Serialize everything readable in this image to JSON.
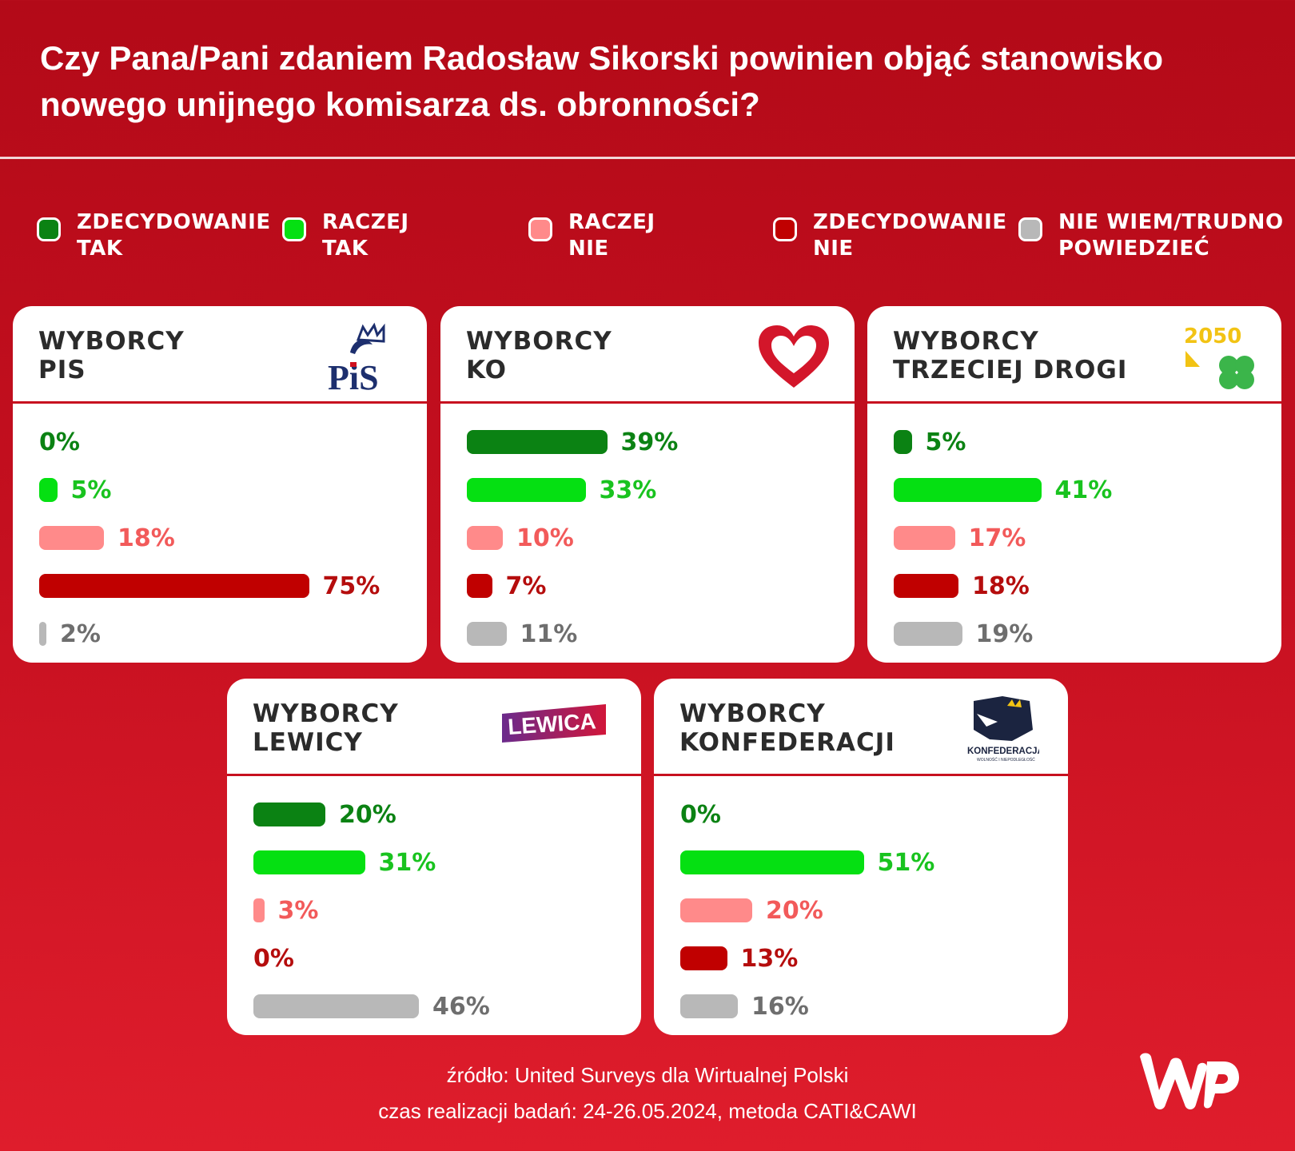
{
  "title": "Czy Pana/Pani zdaniem Radosław Sikorski powinien objąć stanowisko nowego unijnego komisarza ds. obronności?",
  "legend": [
    {
      "line1": "ZDECYDOWANIE",
      "line2": "TAK",
      "color": "#0b8213"
    },
    {
      "line1": "RACZEJ",
      "line2": "TAK",
      "color": "#05e012"
    },
    {
      "line1": "RACZEJ",
      "line2": "NIE",
      "color": "#ff8a8a"
    },
    {
      "line1": "ZDECYDOWANIE",
      "line2": "NIE",
      "color": "#c00000"
    },
    {
      "line1": "NIE WIEM/TRUDNO",
      "line2": "POWIEDZIEĆ",
      "color": "#b8b8b8"
    }
  ],
  "text_colors": [
    "#0b8213",
    "#19c31f",
    "#f25a5a",
    "#b50d0d",
    "#6e6e6e"
  ],
  "chart_data": {
    "type": "bar",
    "orientation": "horizontal",
    "categories": [
      "ZDECYDOWANIE TAK",
      "RACZEJ TAK",
      "RACZEJ NIE",
      "ZDECYDOWANIE NIE",
      "NIE WIEM/TRUDNO POWIEDZIEĆ"
    ],
    "unit": "%",
    "series": [
      {
        "name": "WYBORCY PIS",
        "title_lines": [
          "WYBORCY",
          "PIS"
        ],
        "logo": "pis-logo",
        "values": [
          0,
          5,
          18,
          75,
          2
        ],
        "labels": [
          "0%",
          "5%",
          "18%",
          "75%",
          "2%"
        ]
      },
      {
        "name": "WYBORCY KO",
        "title_lines": [
          "WYBORCY",
          "KO"
        ],
        "logo": "heart-logo",
        "values": [
          39,
          33,
          10,
          7,
          11
        ],
        "labels": [
          "39%",
          "33%",
          "10%",
          "7%",
          "11%"
        ]
      },
      {
        "name": "WYBORCY TRZECIEJ DROGI",
        "title_lines": [
          "WYBORCY",
          "TRZECIEJ DROGI"
        ],
        "logo": "trzecia-droga-logo",
        "values": [
          5,
          41,
          17,
          18,
          19
        ],
        "labels": [
          "5%",
          "41%",
          "17%",
          "18%",
          "19%"
        ]
      },
      {
        "name": "WYBORCY LEWICY",
        "title_lines": [
          "WYBORCY",
          "LEWICY"
        ],
        "logo": "lewica-logo",
        "values": [
          20,
          31,
          3,
          0,
          46
        ],
        "labels": [
          "20%",
          "31%",
          "3%",
          "0%",
          "46%"
        ]
      },
      {
        "name": "WYBORCY KONFEDERACJI",
        "title_lines": [
          "WYBORCY",
          "KONFEDERACJI"
        ],
        "logo": "konfederacja-logo",
        "values": [
          0,
          51,
          20,
          13,
          16
        ],
        "labels": [
          "0%",
          "51%",
          "20%",
          "13%",
          "16%"
        ]
      }
    ]
  },
  "logos": {
    "pis_text": "PiS",
    "lewica_text": "LEWICA",
    "konfederacja_text": "KONFEDERACJA",
    "konfederacja_sub": "WOLNOŚĆ I NIEPODLEGŁOŚĆ",
    "td_number": "2050"
  },
  "footer": {
    "source": "źródło: United Surveys dla Wirtualnej Polski",
    "method": "czas realizacji badań: 24-26.05.2024, metoda CATI&CAWI"
  },
  "brand": "WP"
}
